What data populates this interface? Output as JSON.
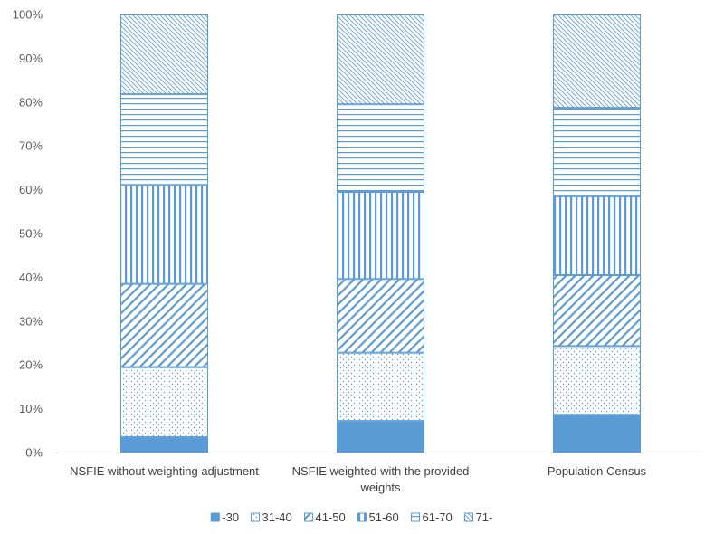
{
  "chart_data": {
    "type": "bar",
    "stacked": true,
    "percent": true,
    "categories": [
      [
        "NSFIE without weighting adjustment"
      ],
      [
        "NSFIE weighted with the provided",
        "weights"
      ],
      [
        "Population Census"
      ]
    ],
    "series": [
      {
        "name": "-30",
        "pattern": "solid",
        "values": [
          3.5,
          7.2,
          8.6
        ]
      },
      {
        "name": "31-40",
        "pattern": "dots",
        "values": [
          16.0,
          15.6,
          15.7
        ]
      },
      {
        "name": "41-50",
        "pattern": "diag-wide",
        "values": [
          19.0,
          16.8,
          16.2
        ]
      },
      {
        "name": "51-60",
        "pattern": "vertical",
        "values": [
          22.6,
          19.9,
          18.0
        ]
      },
      {
        "name": "61-70",
        "pattern": "horizontal",
        "values": [
          20.7,
          20.0,
          20.2
        ]
      },
      {
        "name": "71-",
        "pattern": "diag-fine",
        "values": [
          18.2,
          20.5,
          21.3
        ]
      }
    ],
    "y_ticks": [
      "0%",
      "10%",
      "20%",
      "30%",
      "40%",
      "50%",
      "60%",
      "70%",
      "80%",
      "90%",
      "100%"
    ],
    "ylim": [
      0,
      100
    ],
    "grid": false,
    "legend_position": "bottom",
    "title": "",
    "xlabel": "",
    "ylabel": "",
    "colors": {
      "bar": "#5b9bd5",
      "axis": "#d9d9d9",
      "text": "#595959"
    }
  }
}
